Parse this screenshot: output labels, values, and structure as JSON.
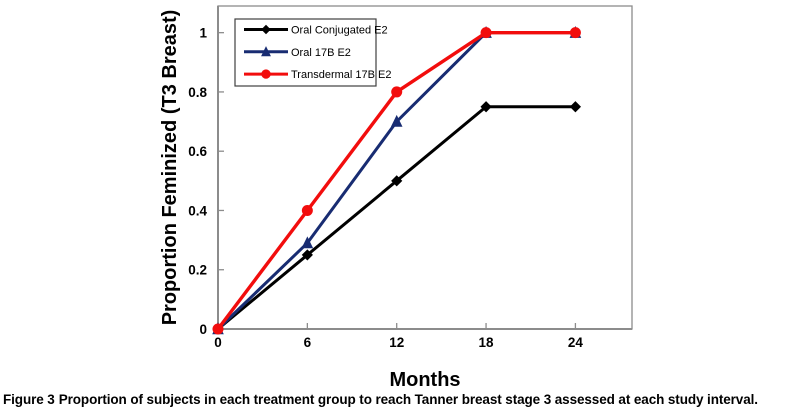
{
  "caption": {
    "label": "Figure 3",
    "text": "Proportion of subjects in each treatment group to reach Tanner breast stage 3 assessed at each study interval."
  },
  "chart_data": {
    "type": "line",
    "title": "",
    "xlabel": "Months",
    "ylabel": "Proportion Feminized (T3 Breast)",
    "x": [
      0,
      6,
      12,
      18,
      24
    ],
    "xticks": [
      "0",
      "6",
      "12",
      "18",
      "24"
    ],
    "xtick_values": [
      0,
      6,
      12,
      18,
      24
    ],
    "yticks": [
      "0",
      "0.2",
      "0.4",
      "0.6",
      "0.8",
      "1"
    ],
    "ytick_values": [
      0,
      0.2,
      0.4,
      0.6,
      0.8,
      1
    ],
    "xlim": [
      0,
      27.8
    ],
    "ylim": [
      0,
      1.09
    ],
    "grid": false,
    "legend_position": "top-left-inside",
    "series": [
      {
        "name": "Oral Conjugated E2",
        "marker": "diamond",
        "color": "#000000",
        "values": [
          0,
          0.25,
          0.5,
          0.75,
          0.75
        ]
      },
      {
        "name": "Oral 17B E2",
        "marker": "triangle",
        "color": "#182c72",
        "values": [
          0,
          0.29,
          0.7,
          1.0,
          1.0
        ]
      },
      {
        "name": "Transdermal 17B E2",
        "marker": "circle",
        "color": "#f20d0d",
        "values": [
          0,
          0.4,
          0.8,
          1.0,
          1.0
        ]
      }
    ],
    "colors": {
      "axis": "#8c8c8c",
      "legend_border": "#404040",
      "background": "#ffffff",
      "text": "#000000"
    }
  }
}
